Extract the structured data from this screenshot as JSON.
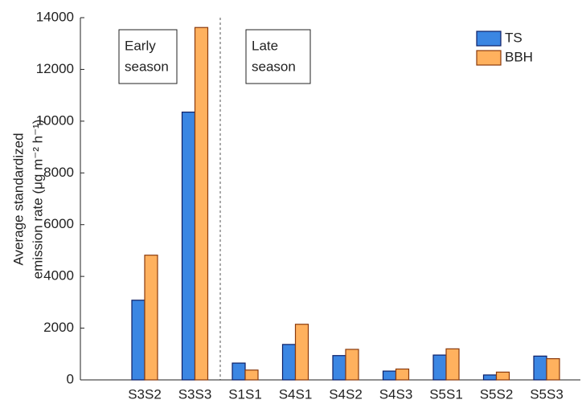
{
  "chart_data": {
    "type": "bar",
    "y_label": [
      "Average standardized",
      "emission rate (μg m⁻² h⁻¹)"
    ],
    "annotations": [
      [
        "Early",
        "season"
      ],
      [
        "Late",
        "season"
      ]
    ],
    "categories": [
      "S3S2",
      "S3S3",
      "S1S1",
      "S4S1",
      "S4S2",
      "S4S3",
      "S5S1",
      "S5S2",
      "S5S3"
    ],
    "series": [
      {
        "name": "TS",
        "color": "#3b86e3",
        "values": [
          3080,
          10350,
          650,
          1370,
          940,
          340,
          960,
          190,
          920
        ]
      },
      {
        "name": "BBH",
        "color": "#ffb15e",
        "values": [
          4820,
          13620,
          380,
          2150,
          1180,
          420,
          1200,
          300,
          820
        ]
      }
    ],
    "ylim": [
      0,
      14000
    ],
    "yticks": [
      0,
      2000,
      4000,
      6000,
      8000,
      10000,
      12000,
      14000
    ],
    "legend": "top-right"
  }
}
